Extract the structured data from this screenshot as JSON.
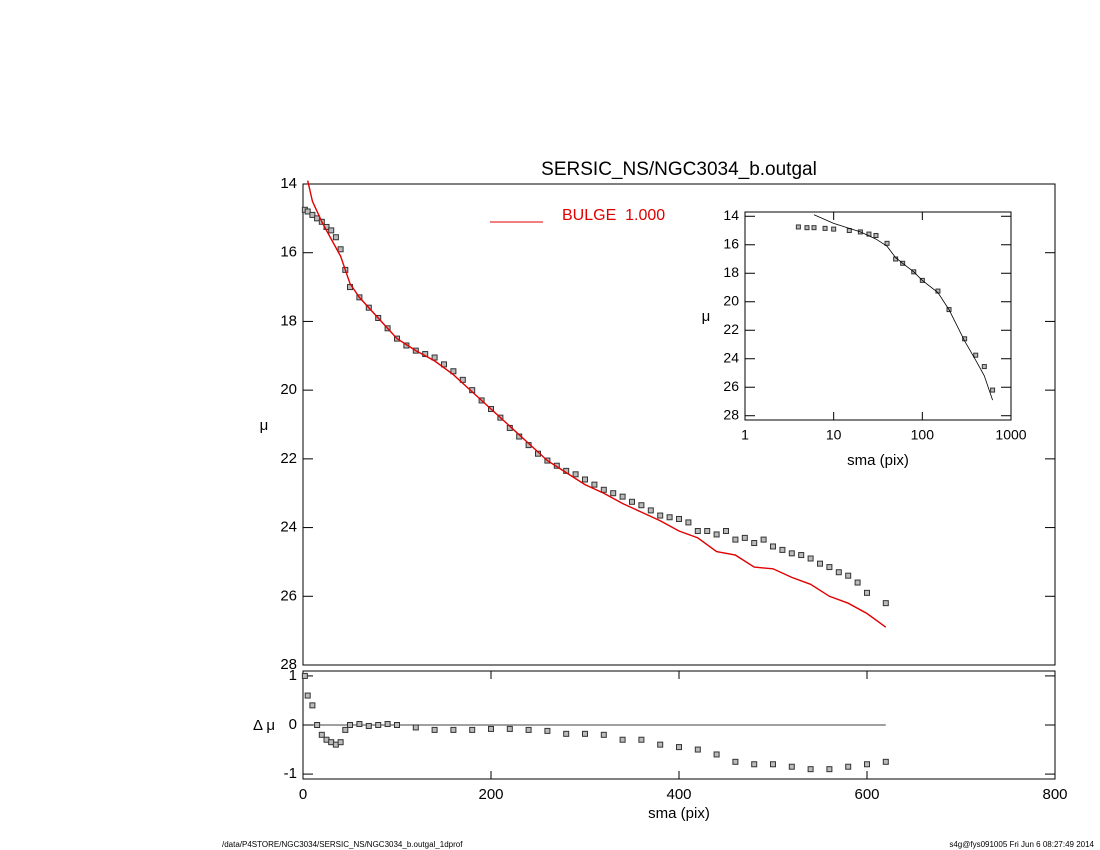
{
  "chart_data": [
    {
      "type": "line",
      "title": "SERSIC_NS/NGC3034_b.outgal",
      "ylabel": "μ",
      "xlim": [
        0,
        800
      ],
      "ylim": [
        14,
        28
      ],
      "y_reversed": true,
      "yticks": [
        14,
        16,
        18,
        20,
        22,
        24,
        26,
        28
      ],
      "series": [
        {
          "color": "#888888",
          "marker": "square",
          "x": [
            2,
            5,
            10,
            15,
            20,
            25,
            30,
            35,
            40,
            45,
            50,
            60,
            70,
            80,
            90,
            100,
            110,
            120,
            130,
            140,
            150,
            160,
            170,
            180,
            190,
            200,
            210,
            220,
            230,
            240,
            250,
            260,
            270,
            280,
            290,
            300,
            310,
            320,
            330,
            340,
            350,
            360,
            370,
            380,
            390,
            400,
            410,
            420,
            430,
            440,
            450,
            460,
            470,
            480,
            490,
            500,
            510,
            520,
            530,
            540,
            550,
            560,
            570,
            580,
            590,
            600,
            620
          ],
          "values": [
            14.75,
            14.8,
            14.9,
            15.0,
            15.1,
            15.25,
            15.35,
            15.55,
            15.9,
            16.5,
            17.0,
            17.3,
            17.6,
            17.9,
            18.2,
            18.5,
            18.7,
            18.85,
            18.95,
            19.05,
            19.25,
            19.45,
            19.7,
            20.0,
            20.3,
            20.55,
            20.8,
            21.1,
            21.35,
            21.6,
            21.85,
            22.05,
            22.2,
            22.35,
            22.45,
            22.6,
            22.75,
            22.9,
            23.0,
            23.1,
            23.25,
            23.35,
            23.5,
            23.65,
            23.7,
            23.75,
            23.85,
            24.1,
            24.1,
            24.2,
            24.1,
            24.35,
            24.3,
            24.45,
            24.35,
            24.55,
            24.65,
            24.75,
            24.8,
            24.9,
            25.05,
            25.15,
            25.3,
            25.4,
            25.6,
            25.9,
            26.2
          ]
        },
        {
          "name": "BULGE  1.000",
          "color": "#e00000",
          "x": [
            5,
            10,
            20,
            30,
            40,
            50,
            60,
            80,
            100,
            120,
            140,
            160,
            180,
            200,
            220,
            240,
            260,
            280,
            300,
            320,
            340,
            360,
            380,
            400,
            420,
            440,
            460,
            480,
            500,
            520,
            540,
            560,
            580,
            600,
            620
          ],
          "values": [
            13.9,
            14.5,
            15.1,
            15.6,
            16.1,
            16.9,
            17.3,
            17.9,
            18.5,
            18.85,
            19.15,
            19.55,
            20.05,
            20.55,
            21.05,
            21.55,
            22.05,
            22.4,
            22.75,
            23.0,
            23.3,
            23.55,
            23.8,
            24.1,
            24.3,
            24.7,
            24.8,
            25.15,
            25.2,
            25.45,
            25.65,
            26.0,
            26.2,
            26.5,
            26.9
          ]
        }
      ]
    },
    {
      "type": "residual",
      "xlabel": "sma (pix)",
      "ylabel": "Δ μ",
      "xlim": [
        0,
        800
      ],
      "xticks": [
        0,
        200,
        400,
        600,
        800
      ],
      "ylim": [
        -1.1,
        1.1
      ],
      "yticks": [
        -1,
        0,
        1
      ],
      "series": [
        {
          "color": "#888888",
          "marker": "square",
          "x": [
            2,
            5,
            10,
            15,
            20,
            25,
            30,
            35,
            40,
            45,
            50,
            60,
            70,
            80,
            90,
            100,
            120,
            140,
            160,
            180,
            200,
            220,
            240,
            260,
            280,
            300,
            320,
            340,
            360,
            380,
            400,
            420,
            440,
            460,
            480,
            500,
            520,
            540,
            560,
            580,
            600,
            620
          ],
          "values": [
            1.0,
            0.6,
            0.4,
            0.0,
            -0.2,
            -0.3,
            -0.35,
            -0.4,
            -0.35,
            -0.1,
            0.0,
            0.02,
            -0.02,
            0.0,
            0.02,
            0.0,
            -0.05,
            -0.1,
            -0.1,
            -0.1,
            -0.08,
            -0.08,
            -0.1,
            -0.12,
            -0.18,
            -0.18,
            -0.2,
            -0.3,
            -0.3,
            -0.4,
            -0.45,
            -0.5,
            -0.6,
            -0.75,
            -0.8,
            -0.8,
            -0.85,
            -0.9,
            -0.9,
            -0.85,
            -0.8,
            -0.75
          ]
        }
      ]
    },
    {
      "type": "line",
      "xlabel": "sma (pix)",
      "ylabel": "μ",
      "xlog": true,
      "xlim": [
        1,
        1000
      ],
      "xticks": [
        1,
        10,
        100,
        1000
      ],
      "ylim": [
        13.7,
        28.3
      ],
      "y_reversed": true,
      "yticks": [
        14,
        16,
        18,
        20,
        22,
        24,
        26,
        28
      ],
      "series": [
        {
          "color": "#888888",
          "marker": "square",
          "x": [
            4,
            5,
            6,
            8,
            10,
            15,
            20,
            25,
            30,
            40,
            50,
            60,
            80,
            100,
            150,
            200,
            300,
            400,
            500,
            620
          ],
          "values": [
            14.75,
            14.8,
            14.8,
            14.85,
            14.9,
            15.0,
            15.1,
            15.25,
            15.35,
            15.9,
            17.0,
            17.3,
            17.9,
            18.5,
            19.25,
            20.55,
            22.6,
            23.75,
            24.55,
            26.2
          ]
        },
        {
          "color": "#000000",
          "x": [
            6,
            10,
            20,
            30,
            40,
            50,
            60,
            80,
            100,
            150,
            200,
            300,
            400,
            500,
            620
          ],
          "values": [
            13.9,
            14.5,
            15.1,
            15.6,
            16.1,
            16.9,
            17.3,
            17.9,
            18.5,
            19.35,
            20.55,
            22.75,
            24.1,
            25.2,
            26.9
          ]
        }
      ]
    }
  ],
  "footer": {
    "left": "/data/P4STORE/NGC3034/SERSIC_NS/NGC3034_b.outgal_1dprof",
    "right": "s4g@fys091005  Fri Jun  6 08:27:49 2014"
  }
}
